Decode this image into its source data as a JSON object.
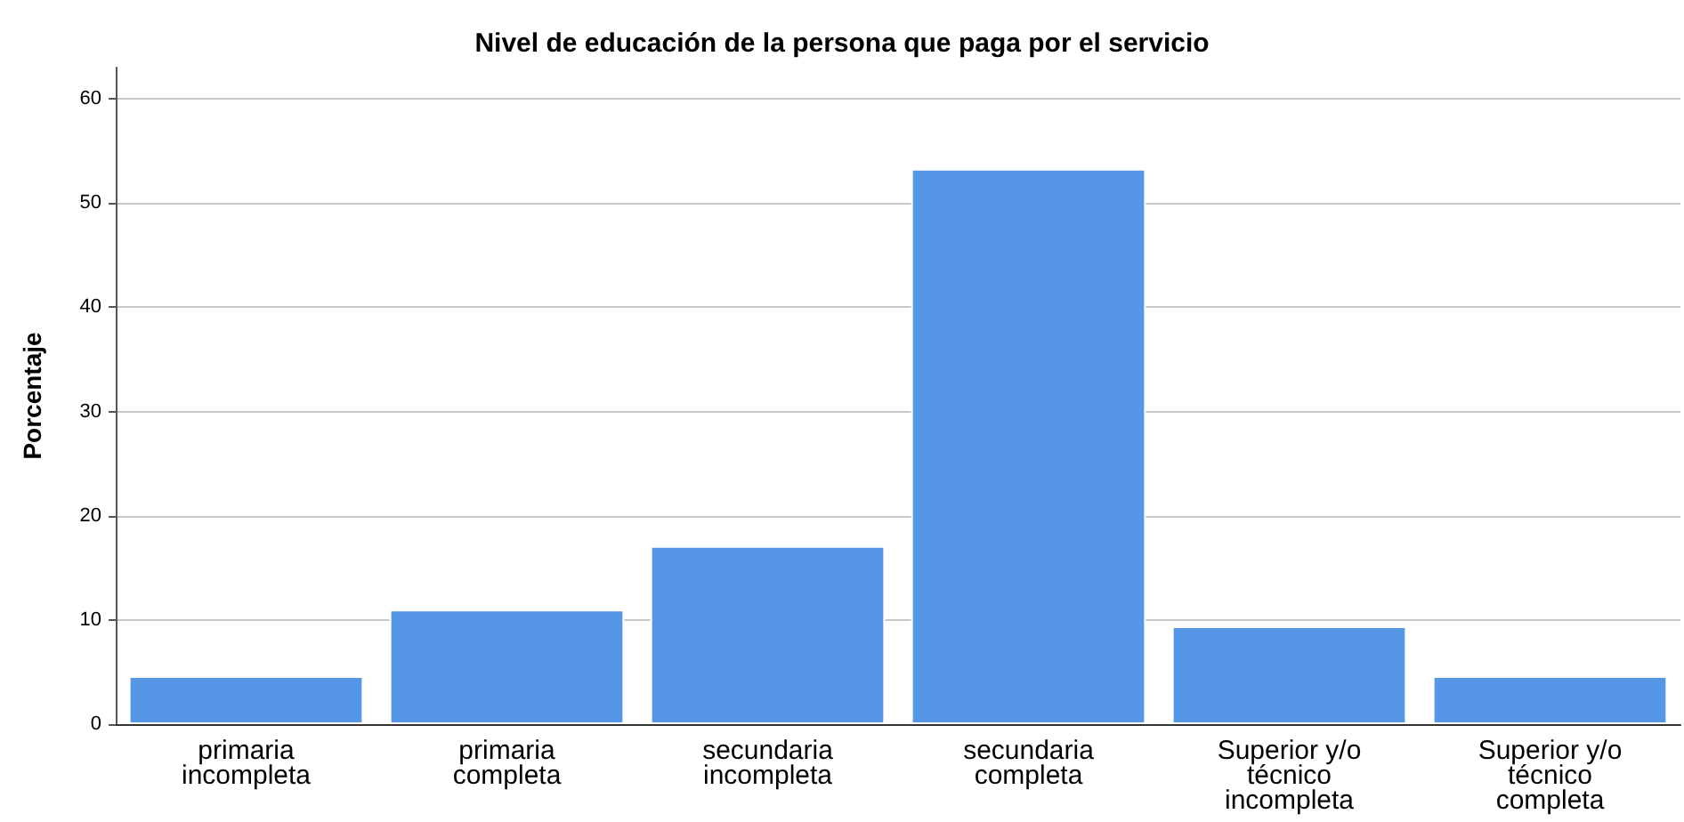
{
  "chart_data": {
    "type": "bar",
    "title": "Nivel de educación de la persona que paga por el servicio",
    "ylabel": "Porcentaje",
    "categories": [
      "primaria\nincompleta",
      "primaria\ncompleta",
      "secundaria\nincompleta",
      "secundaria\ncompleta",
      "Superior y/o\ntécnico\nincompleta",
      "Superior y/o\ntécnico\ncompleta"
    ],
    "values": [
      4.6,
      11.0,
      17.1,
      53.3,
      9.4,
      4.6
    ],
    "color": "#5596e6",
    "ylim": [
      0,
      63
    ],
    "yticks": [
      0,
      10,
      20,
      30,
      40,
      50,
      60
    ],
    "grid": "y"
  }
}
